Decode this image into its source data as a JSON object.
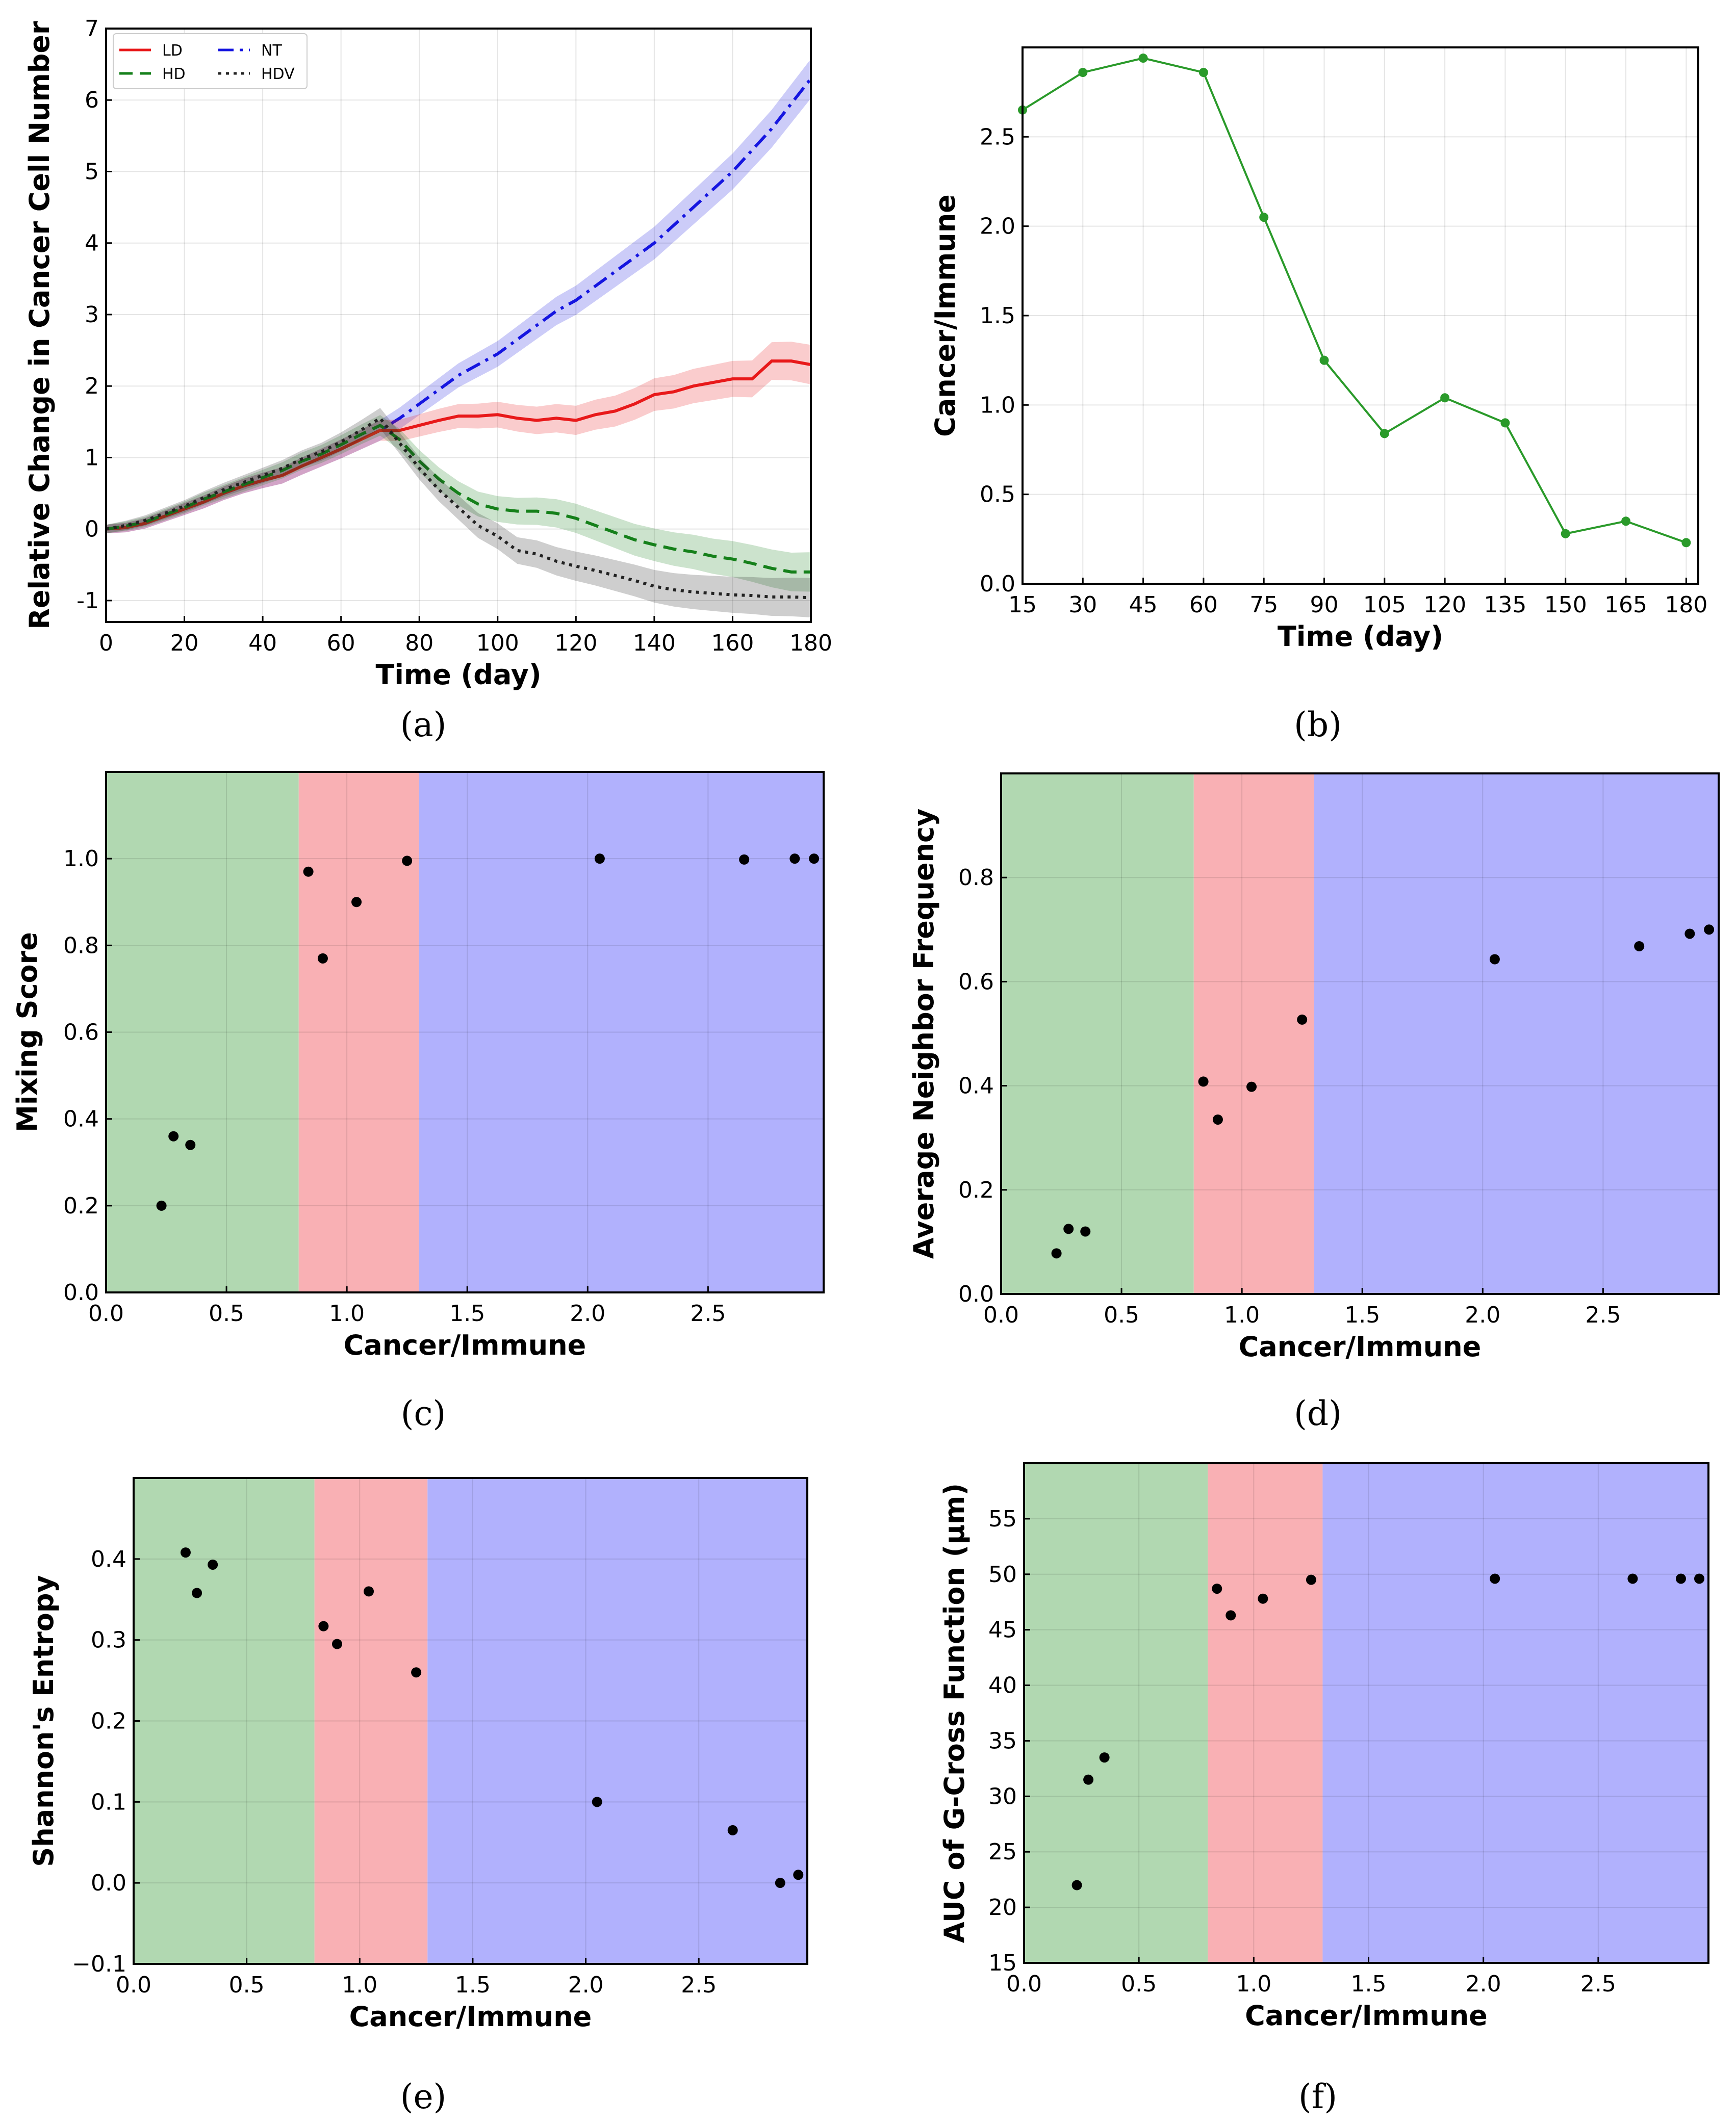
{
  "figure": {
    "panel_labels": {
      "a": "(a)",
      "b": "(b)",
      "c": "(c)",
      "d": "(d)",
      "e": "(e)",
      "f": "(f)"
    }
  },
  "colors": {
    "LD": "#e8191a",
    "HD": "#15801a",
    "NT": "#1515e0",
    "HDV": "#222222",
    "region_low": "#b1d8b1",
    "region_mid": "#f9b0b4",
    "region_high": "#b1b1fd",
    "line_b": "#2a9a2a"
  },
  "chart_data": [
    {
      "id": "a",
      "type": "line",
      "title": "",
      "xlabel": "Time (day)",
      "ylabel": "Relative Change in Cancer Cell Number",
      "xlim": [
        0,
        180
      ],
      "ylim": [
        -1.3,
        7
      ],
      "xticks": [
        0,
        20,
        40,
        60,
        80,
        100,
        120,
        140,
        160,
        180
      ],
      "yticks": [
        -1,
        0,
        1,
        2,
        3,
        4,
        5,
        6,
        7
      ],
      "legend": {
        "position": "top-left",
        "entries": [
          "LD",
          "HD",
          "NT",
          "HDV"
        ]
      },
      "series": [
        {
          "name": "NT",
          "style": "dashdot",
          "x": [
            0,
            5,
            10,
            15,
            20,
            25,
            30,
            35,
            40,
            45,
            50,
            55,
            60,
            65,
            70,
            75,
            80,
            85,
            90,
            95,
            100,
            105,
            110,
            115,
            120,
            125,
            130,
            135,
            140,
            145,
            150,
            155,
            160,
            165,
            170,
            175,
            180
          ],
          "y": [
            0,
            0.02,
            0.08,
            0.18,
            0.28,
            0.38,
            0.5,
            0.6,
            0.68,
            0.75,
            0.88,
            1.0,
            1.12,
            1.25,
            1.38,
            1.55,
            1.75,
            1.95,
            2.15,
            2.3,
            2.45,
            2.65,
            2.85,
            3.05,
            3.2,
            3.4,
            3.6,
            3.8,
            4.0,
            4.25,
            4.5,
            4.75,
            5.0,
            5.3,
            5.6,
            5.95,
            6.3
          ]
        },
        {
          "name": "LD",
          "style": "solid",
          "x": [
            0,
            5,
            10,
            15,
            20,
            25,
            30,
            35,
            40,
            45,
            50,
            55,
            60,
            65,
            70,
            75,
            80,
            85,
            90,
            95,
            100,
            105,
            110,
            115,
            120,
            125,
            130,
            135,
            140,
            145,
            150,
            155,
            160,
            165,
            170,
            175,
            180
          ],
          "y": [
            0,
            0.02,
            0.08,
            0.18,
            0.28,
            0.38,
            0.5,
            0.6,
            0.68,
            0.75,
            0.88,
            1.0,
            1.12,
            1.25,
            1.38,
            1.38,
            1.45,
            1.52,
            1.58,
            1.58,
            1.6,
            1.55,
            1.52,
            1.55,
            1.52,
            1.6,
            1.65,
            1.75,
            1.88,
            1.92,
            2.0,
            2.05,
            2.1,
            2.1,
            2.35,
            2.35,
            2.3
          ]
        },
        {
          "name": "HD",
          "style": "dashed",
          "x": [
            0,
            5,
            10,
            15,
            20,
            25,
            30,
            35,
            40,
            45,
            50,
            55,
            60,
            65,
            70,
            75,
            80,
            85,
            90,
            95,
            100,
            105,
            110,
            115,
            120,
            125,
            130,
            135,
            140,
            145,
            150,
            155,
            160,
            165,
            170,
            175,
            180
          ],
          "y": [
            0,
            0.04,
            0.1,
            0.2,
            0.3,
            0.42,
            0.52,
            0.62,
            0.72,
            0.82,
            0.95,
            1.05,
            1.18,
            1.32,
            1.45,
            1.25,
            0.95,
            0.7,
            0.5,
            0.35,
            0.28,
            0.25,
            0.25,
            0.22,
            0.15,
            0.05,
            -0.05,
            -0.15,
            -0.22,
            -0.28,
            -0.32,
            -0.38,
            -0.42,
            -0.48,
            -0.55,
            -0.6,
            -0.6
          ]
        },
        {
          "name": "HDV",
          "style": "dotted",
          "x": [
            0,
            5,
            10,
            15,
            20,
            25,
            30,
            35,
            40,
            45,
            50,
            55,
            60,
            65,
            70,
            75,
            80,
            85,
            90,
            95,
            100,
            105,
            110,
            115,
            120,
            125,
            130,
            135,
            140,
            145,
            150,
            155,
            160,
            165,
            170,
            175,
            180
          ],
          "y": [
            0,
            0.05,
            0.12,
            0.22,
            0.32,
            0.44,
            0.55,
            0.65,
            0.75,
            0.85,
            0.98,
            1.08,
            1.22,
            1.38,
            1.55,
            1.2,
            0.85,
            0.55,
            0.3,
            0.05,
            -0.1,
            -0.3,
            -0.35,
            -0.45,
            -0.52,
            -0.58,
            -0.65,
            -0.72,
            -0.8,
            -0.85,
            -0.88,
            -0.9,
            -0.92,
            -0.93,
            -0.95,
            -0.95,
            -0.96
          ]
        }
      ]
    },
    {
      "id": "b",
      "type": "line",
      "title": "",
      "xlabel": "Time (day)",
      "ylabel": "Cancer/Immune",
      "xlim": [
        15,
        183
      ],
      "ylim": [
        0,
        3.0
      ],
      "xticks": [
        15,
        30,
        45,
        60,
        75,
        90,
        105,
        120,
        135,
        150,
        165,
        180
      ],
      "yticks": [
        "0.0",
        "0.5",
        "1.0",
        "1.5",
        "2.0",
        "2.5"
      ],
      "x": [
        15,
        30,
        45,
        60,
        75,
        90,
        105,
        120,
        135,
        150,
        165,
        180
      ],
      "y": [
        2.65,
        2.86,
        2.94,
        2.86,
        2.05,
        1.25,
        0.84,
        1.04,
        0.9,
        0.28,
        0.35,
        0.23
      ]
    },
    {
      "id": "c",
      "type": "scatter",
      "title": "",
      "xlabel": "Cancer/Immune",
      "ylabel": "Mixing Score",
      "xlim": [
        0,
        2.98
      ],
      "ylim": [
        0,
        1.2
      ],
      "xticks": [
        "0.0",
        "0.5",
        "1.0",
        "1.5",
        "2.0",
        "2.5"
      ],
      "yticks": [
        "0.0",
        "0.2",
        "0.4",
        "0.6",
        "0.8",
        "1.0"
      ],
      "regions": [
        [
          0,
          0.8
        ],
        [
          0.8,
          1.3
        ],
        [
          1.3,
          2.98
        ]
      ],
      "x": [
        0.23,
        0.28,
        0.35,
        0.84,
        0.9,
        1.04,
        1.25,
        2.05,
        2.65,
        2.86,
        2.94
      ],
      "y": [
        0.2,
        0.36,
        0.34,
        0.97,
        0.77,
        0.9,
        0.995,
        1.0,
        0.998,
        1.0,
        1.0
      ]
    },
    {
      "id": "d",
      "type": "scatter",
      "title": "",
      "xlabel": "Cancer/Immune",
      "ylabel": "Average Neighbor Frequency",
      "xlim": [
        0,
        2.98
      ],
      "ylim": [
        0,
        1.0
      ],
      "xticks": [
        "0.0",
        "0.5",
        "1.0",
        "1.5",
        "2.0",
        "2.5"
      ],
      "yticks": [
        "0.0",
        "0.2",
        "0.4",
        "0.6",
        "0.8"
      ],
      "regions": [
        [
          0,
          0.8
        ],
        [
          0.8,
          1.3
        ],
        [
          1.3,
          2.98
        ]
      ],
      "x": [
        0.23,
        0.28,
        0.35,
        0.84,
        0.9,
        1.04,
        1.25,
        2.05,
        2.65,
        2.86,
        2.94
      ],
      "y": [
        0.078,
        0.125,
        0.12,
        0.408,
        0.335,
        0.398,
        0.527,
        0.643,
        0.668,
        0.692,
        0.7
      ]
    },
    {
      "id": "e",
      "type": "scatter",
      "title": "",
      "xlabel": "Cancer/Immune",
      "ylabel": "Shannon's Entropy",
      "xlim": [
        0,
        2.98
      ],
      "ylim": [
        -0.1,
        0.5
      ],
      "xticks": [
        "0.0",
        "0.5",
        "1.0",
        "1.5",
        "2.0",
        "2.5"
      ],
      "yticks": [
        "−0.1",
        "0.0",
        "0.1",
        "0.2",
        "0.3",
        "0.4"
      ],
      "regions": [
        [
          0,
          0.8
        ],
        [
          0.8,
          1.3
        ],
        [
          1.3,
          2.98
        ]
      ],
      "x": [
        0.23,
        0.28,
        0.35,
        0.84,
        0.9,
        1.04,
        1.25,
        2.05,
        2.65,
        2.86,
        2.94
      ],
      "y": [
        0.408,
        0.358,
        0.393,
        0.317,
        0.295,
        0.36,
        0.26,
        0.1,
        0.065,
        0.0,
        0.01
      ]
    },
    {
      "id": "f",
      "type": "scatter",
      "title": "",
      "xlabel": "Cancer/Immune",
      "ylabel": "AUC of G-Cross Function (μm)",
      "xlim": [
        0,
        2.98
      ],
      "ylim": [
        15,
        60
      ],
      "xticks": [
        "0.0",
        "0.5",
        "1.0",
        "1.5",
        "2.0",
        "2.5"
      ],
      "yticks": [
        "15",
        "20",
        "25",
        "30",
        "35",
        "40",
        "45",
        "50",
        "55"
      ],
      "regions": [
        [
          0,
          0.8
        ],
        [
          0.8,
          1.3
        ],
        [
          1.3,
          2.98
        ]
      ],
      "x": [
        0.23,
        0.28,
        0.35,
        0.84,
        0.9,
        1.04,
        1.25,
        2.05,
        2.65,
        2.86,
        2.94
      ],
      "y": [
        22.0,
        31.5,
        33.5,
        48.7,
        46.3,
        47.8,
        49.5,
        49.6,
        49.6,
        49.6,
        49.6
      ]
    }
  ]
}
